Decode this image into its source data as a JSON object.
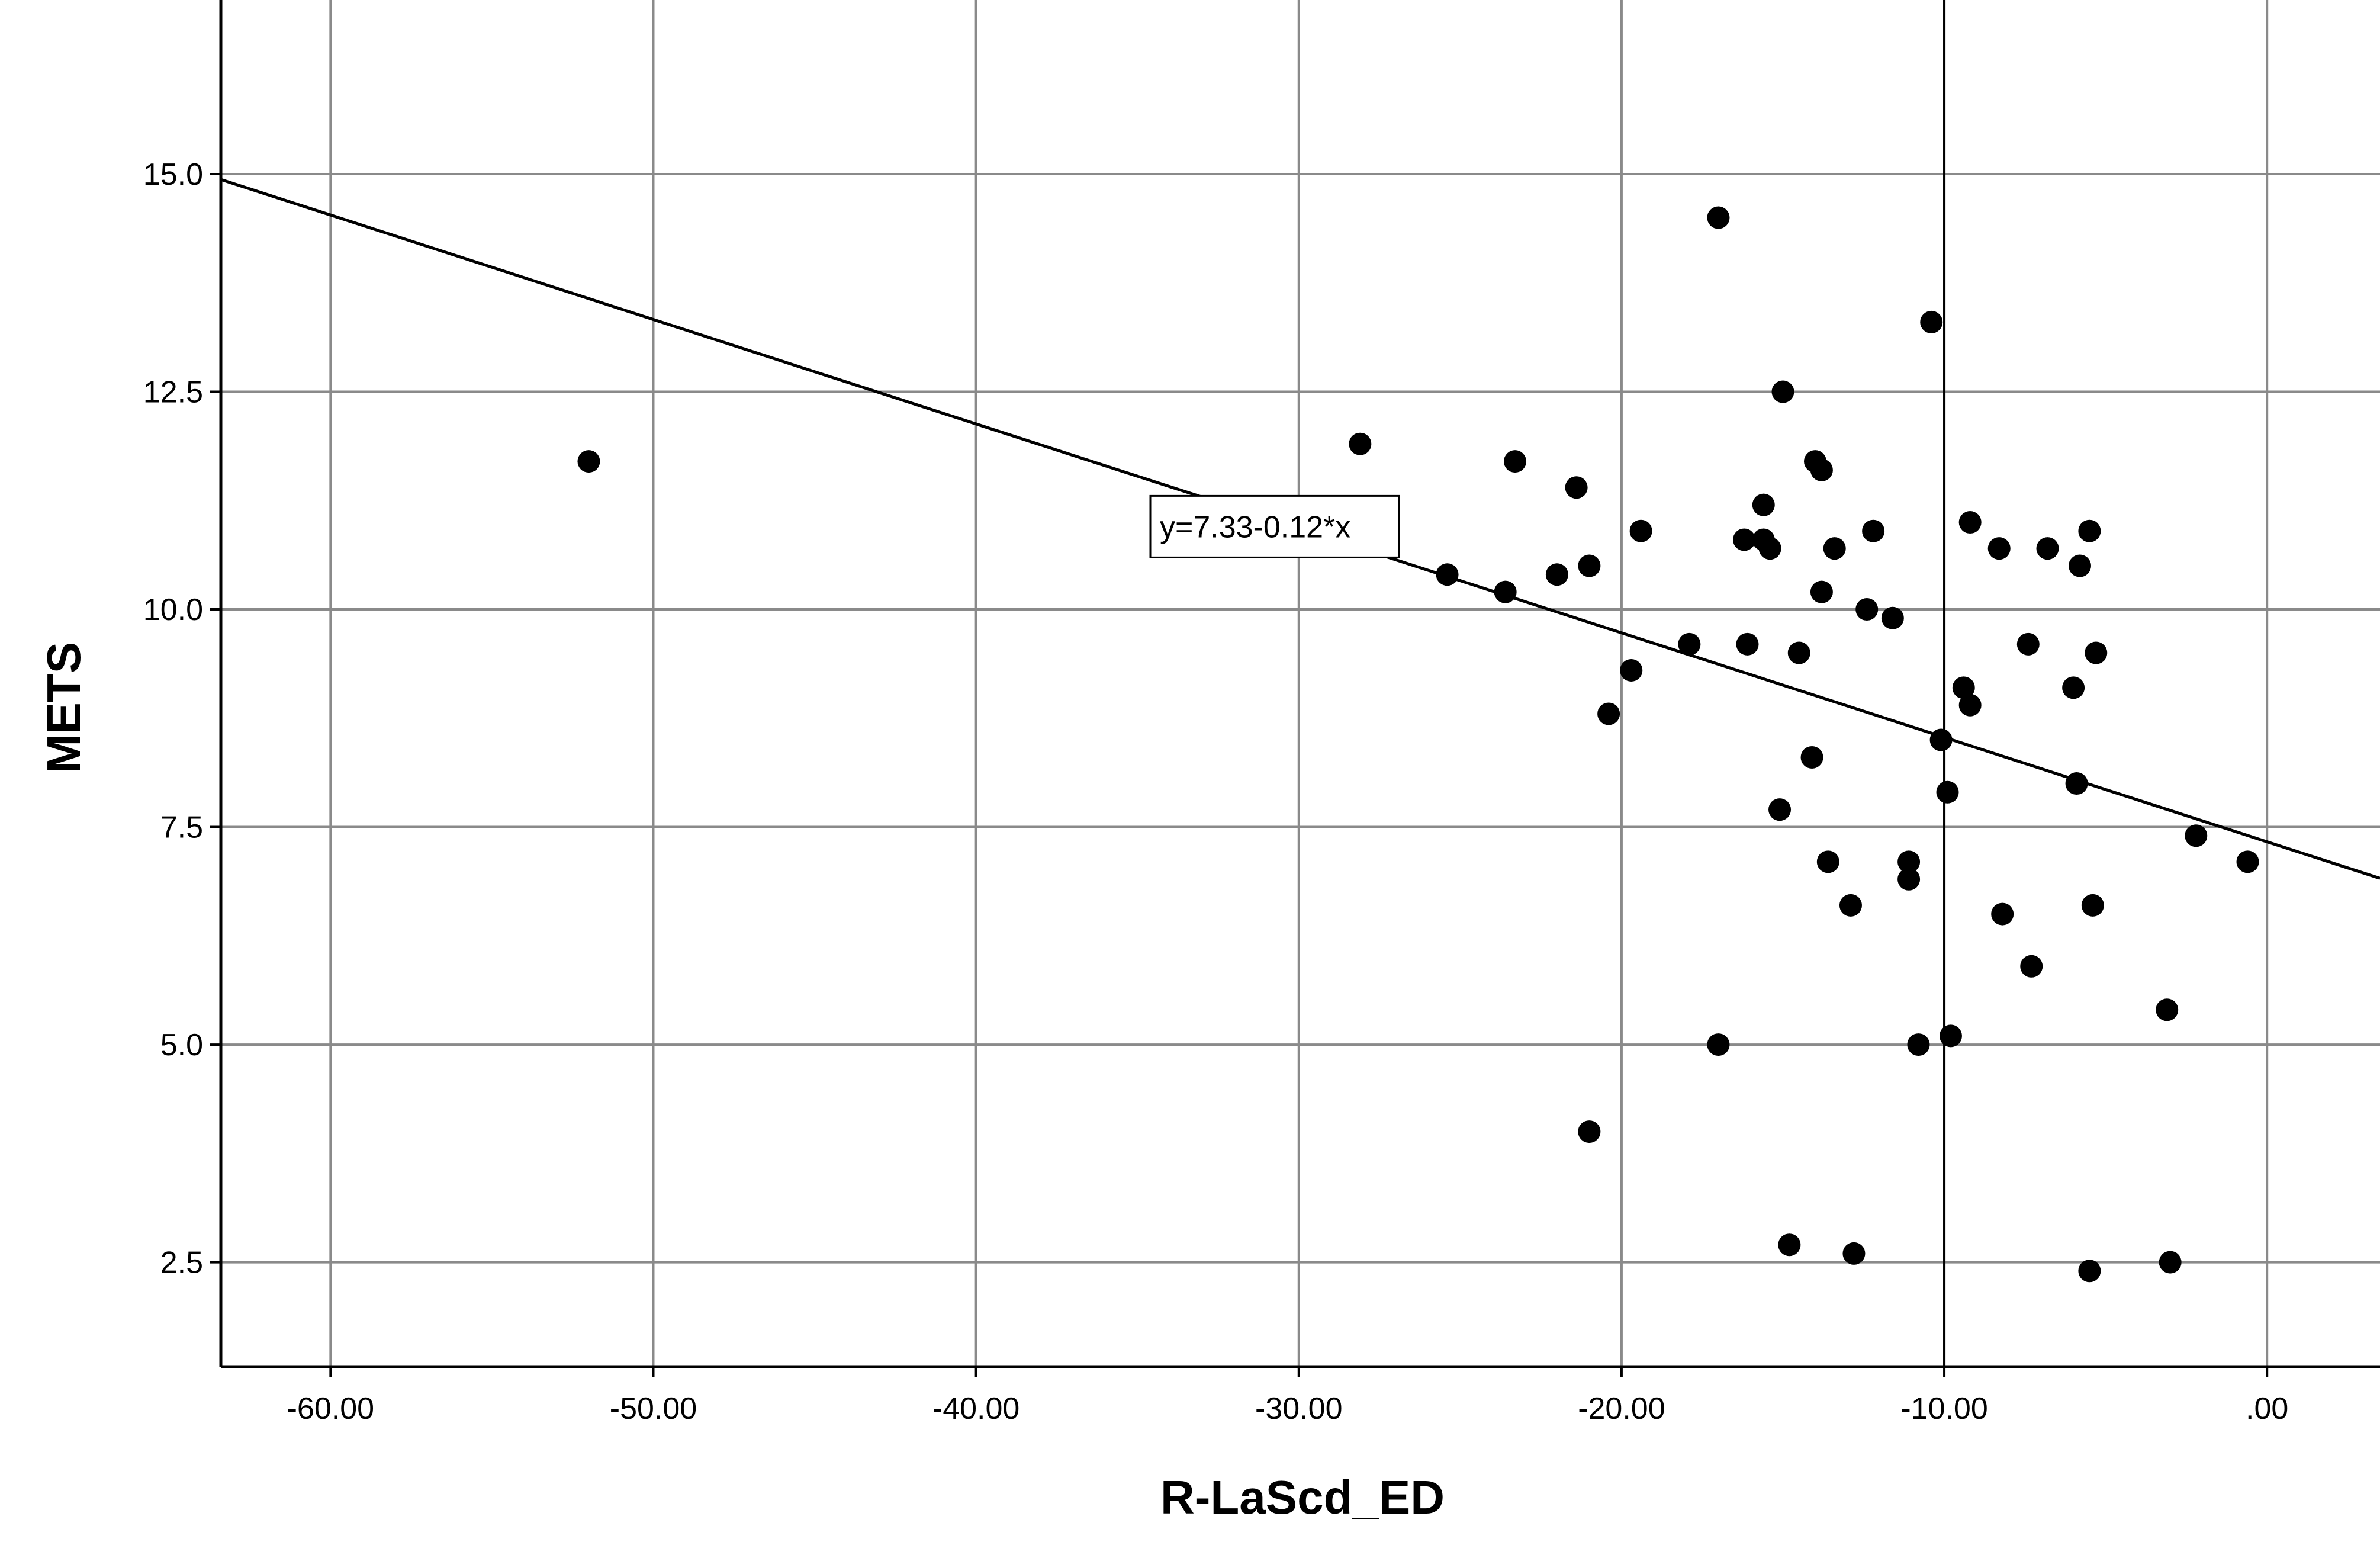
{
  "chart_data": {
    "type": "scatter",
    "xlabel": "R-LaScd_ED",
    "ylabel": "METS",
    "xlim": [
      -63.4,
      3.5
    ],
    "ylim": [
      1.3,
      17.0
    ],
    "x_ticks": [
      -60,
      -50,
      -40,
      -30,
      -20,
      -10,
      0
    ],
    "x_tick_labels": [
      "-60.00",
      "-50.00",
      "-40.00",
      "-30.00",
      "-20.00",
      "-10.00",
      ".00"
    ],
    "y_ticks": [
      2.5,
      5.0,
      7.5,
      10.0,
      12.5,
      15.0
    ],
    "y_tick_labels": [
      "2.5",
      "5.0",
      "7.5",
      "10.0",
      "12.5",
      "15.0"
    ],
    "grid": true,
    "fit_line": {
      "intercept": 7.33,
      "slope": -0.12,
      "label": "y=7.33-0.12*x"
    },
    "points": [
      {
        "x": -52.0,
        "y": 11.7
      },
      {
        "x": -28.1,
        "y": 11.9
      },
      {
        "x": -25.4,
        "y": 10.4
      },
      {
        "x": -23.6,
        "y": 10.2
      },
      {
        "x": -23.3,
        "y": 11.7
      },
      {
        "x": -22.0,
        "y": 10.4
      },
      {
        "x": -21.4,
        "y": 11.4
      },
      {
        "x": -21.0,
        "y": 10.5
      },
      {
        "x": -21.0,
        "y": 4.0
      },
      {
        "x": -20.4,
        "y": 8.8
      },
      {
        "x": -19.7,
        "y": 9.3
      },
      {
        "x": -19.4,
        "y": 10.9
      },
      {
        "x": -17.9,
        "y": 9.6
      },
      {
        "x": -17.0,
        "y": 14.5
      },
      {
        "x": -17.0,
        "y": 5.0
      },
      {
        "x": -16.2,
        "y": 10.8
      },
      {
        "x": -16.1,
        "y": 9.6
      },
      {
        "x": -15.6,
        "y": 11.2
      },
      {
        "x": -15.6,
        "y": 10.8
      },
      {
        "x": -15.4,
        "y": 10.7
      },
      {
        "x": -15.0,
        "y": 12.5
      },
      {
        "x": -15.1,
        "y": 7.7
      },
      {
        "x": -14.8,
        "y": 2.7
      },
      {
        "x": -14.5,
        "y": 9.5
      },
      {
        "x": -14.1,
        "y": 8.3
      },
      {
        "x": -14.0,
        "y": 11.7
      },
      {
        "x": -13.8,
        "y": 11.6
      },
      {
        "x": -13.8,
        "y": 10.2
      },
      {
        "x": -13.6,
        "y": 7.1
      },
      {
        "x": -13.4,
        "y": 10.7
      },
      {
        "x": -12.9,
        "y": 6.6
      },
      {
        "x": -12.8,
        "y": 2.6
      },
      {
        "x": -12.4,
        "y": 10.0
      },
      {
        "x": -12.2,
        "y": 10.9
      },
      {
        "x": -11.6,
        "y": 9.9
      },
      {
        "x": -11.1,
        "y": 7.1
      },
      {
        "x": -11.1,
        "y": 6.9
      },
      {
        "x": -10.8,
        "y": 5.0
      },
      {
        "x": -10.4,
        "y": 13.3
      },
      {
        "x": -10.1,
        "y": 8.5
      },
      {
        "x": -9.9,
        "y": 7.9
      },
      {
        "x": -9.8,
        "y": 5.1
      },
      {
        "x": -9.4,
        "y": 9.1
      },
      {
        "x": -9.2,
        "y": 11.0
      },
      {
        "x": -9.2,
        "y": 8.9
      },
      {
        "x": -8.3,
        "y": 10.7
      },
      {
        "x": -8.2,
        "y": 6.5
      },
      {
        "x": -7.4,
        "y": 9.6
      },
      {
        "x": -7.3,
        "y": 5.9
      },
      {
        "x": -6.8,
        "y": 10.7
      },
      {
        "x": -6.0,
        "y": 9.1
      },
      {
        "x": -5.9,
        "y": 8.0
      },
      {
        "x": -5.8,
        "y": 10.5
      },
      {
        "x": -5.5,
        "y": 10.9
      },
      {
        "x": -5.4,
        "y": 6.6
      },
      {
        "x": -5.3,
        "y": 9.5
      },
      {
        "x": -5.5,
        "y": 2.4
      },
      {
        "x": -3.1,
        "y": 5.4
      },
      {
        "x": -3.0,
        "y": 2.5
      },
      {
        "x": -2.2,
        "y": 7.4
      },
      {
        "x": -0.6,
        "y": 7.1
      }
    ]
  }
}
